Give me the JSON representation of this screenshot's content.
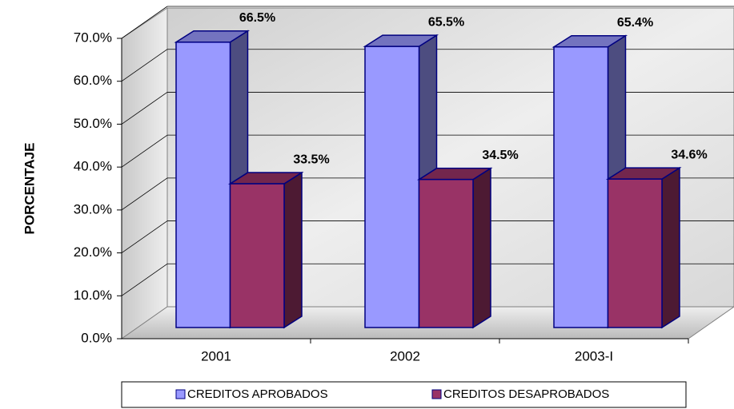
{
  "chart_data": {
    "type": "bar3d",
    "y_label": "PORCENTAJE",
    "categories": [
      "2001",
      "2002",
      "2003-I"
    ],
    "series": [
      {
        "name": "CREDITOS APROBADOS",
        "color": "#9999ff",
        "values": [
          66.5,
          65.5,
          65.4
        ],
        "value_labels": [
          "66.5%",
          "65.5%",
          "65.4%"
        ]
      },
      {
        "name": "CREDITOS DESAPROBADOS",
        "color": "#993366",
        "values": [
          33.5,
          34.5,
          34.6
        ],
        "value_labels": [
          "33.5%",
          "34.5%",
          "34.6%"
        ]
      }
    ],
    "ylim": [
      0,
      70
    ],
    "yticks": [
      {
        "value": 0,
        "label": "0.0%"
      },
      {
        "value": 10,
        "label": "10.0%"
      },
      {
        "value": 20,
        "label": "20.0%"
      },
      {
        "value": 30,
        "label": "30.0%"
      },
      {
        "value": 40,
        "label": "40.0%"
      },
      {
        "value": 50,
        "label": "50.0%"
      },
      {
        "value": 60,
        "label": "60.0%"
      },
      {
        "value": 70,
        "label": "70.0%"
      }
    ],
    "grid": true,
    "legend": "bottom"
  }
}
